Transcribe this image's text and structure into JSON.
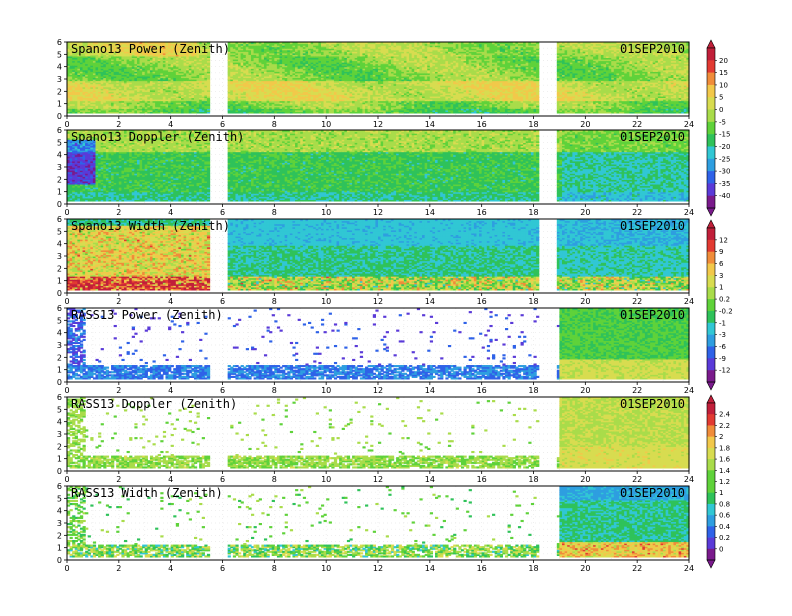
{
  "chart_data": [
    {
      "type": "heatmap",
      "title": "Spano13 Power (Zenith)",
      "date": "01SEP2010",
      "xlim": [
        0,
        24
      ],
      "ylim": [
        0,
        6
      ],
      "xticks": [
        0,
        2,
        4,
        6,
        8,
        10,
        12,
        14,
        16,
        18,
        20,
        22,
        24
      ],
      "yticks": [
        0,
        1,
        2,
        3,
        4,
        5,
        6
      ],
      "data_gaps_hours": [
        [
          5.4,
          6.1
        ],
        [
          18.1,
          18.9
        ]
      ],
      "colorbar_ticks": [
        "20",
        "15",
        "10",
        "5",
        "0",
        "-5",
        "-15",
        "-20",
        "-25",
        "-30",
        "-35",
        "-40"
      ]
    },
    {
      "type": "heatmap",
      "title": "Spano13 Doppler (Zenith)",
      "date": "01SEP2010",
      "xlim": [
        0,
        24
      ],
      "ylim": [
        0,
        6
      ],
      "xticks": [
        0,
        2,
        4,
        6,
        8,
        10,
        12,
        14,
        16,
        18,
        20,
        22,
        24
      ],
      "yticks": [
        0,
        1,
        2,
        3,
        4,
        5,
        6
      ],
      "data_gaps_hours": [
        [
          5.4,
          6.1
        ],
        [
          18.1,
          18.9
        ]
      ]
    },
    {
      "type": "heatmap",
      "title": "Spano13 Width (Zenith)",
      "date": "01SEP2010",
      "xlim": [
        0,
        24
      ],
      "ylim": [
        0,
        6
      ],
      "xticks": [
        0,
        2,
        4,
        6,
        8,
        10,
        12,
        14,
        16,
        18,
        20,
        22,
        24
      ],
      "yticks": [
        0,
        1,
        2,
        3,
        4,
        5,
        6
      ],
      "data_gaps_hours": [
        [
          5.4,
          6.1
        ],
        [
          18.1,
          18.9
        ]
      ],
      "colorbar_ticks": [
        "12",
        "9",
        "6",
        "3",
        "1",
        "0.2",
        "-0.2",
        "-1",
        "-3",
        "-6",
        "-9",
        "-12"
      ]
    },
    {
      "type": "heatmap",
      "title": "RASS13 Power (Zenith)",
      "date": "01SEP2010",
      "xlim": [
        0,
        24
      ],
      "ylim": [
        0,
        6
      ],
      "xticks": [
        0,
        2,
        4,
        6,
        8,
        10,
        12,
        14,
        16,
        18,
        20,
        22,
        24
      ],
      "yticks": [
        0,
        1,
        2,
        3,
        4,
        5,
        6
      ]
    },
    {
      "type": "heatmap",
      "title": "RASS13 Doppler (Zenith)",
      "date": "01SEP2010",
      "xlim": [
        0,
        24
      ],
      "ylim": [
        0,
        6
      ],
      "xticks": [
        0,
        2,
        4,
        6,
        8,
        10,
        12,
        14,
        16,
        18,
        20,
        22,
        24
      ],
      "yticks": [
        0,
        1,
        2,
        3,
        4,
        5,
        6
      ],
      "colorbar_ticks": [
        "2.4",
        "2.2",
        "2",
        "1.8",
        "1.6",
        "1.4",
        "1.2",
        "1",
        "0.8",
        "0.6",
        "0.4",
        "0.2",
        "0"
      ]
    },
    {
      "type": "heatmap",
      "title": "RASS13 Width (Zenith)",
      "date": "01SEP2010",
      "xlim": [
        0,
        24
      ],
      "ylim": [
        0,
        6
      ],
      "xticks": [
        0,
        2,
        4,
        6,
        8,
        10,
        12,
        14,
        16,
        18,
        20,
        22,
        24
      ],
      "yticks": [
        0,
        1,
        2,
        3,
        4,
        5,
        6
      ]
    }
  ],
  "palettes": {
    "spectral": [
      "#7a1a8c",
      "#5a3ad8",
      "#2f62e8",
      "#2e9ee0",
      "#31c7d4",
      "#2fc25a",
      "#5fd23a",
      "#a9dc4a",
      "#d8dc50",
      "#f2c84a",
      "#f08c3a",
      "#e23a32",
      "#c11f3a"
    ]
  }
}
